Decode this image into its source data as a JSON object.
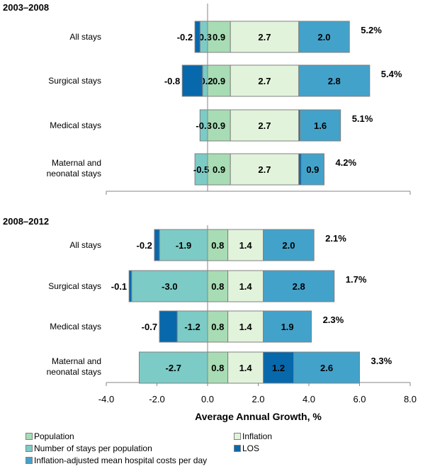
{
  "chart_data": [
    {
      "type": "bar",
      "orientation": "horizontal",
      "stacked": true,
      "title": "2003–2008",
      "categories": [
        "All stays",
        "Surgical stays",
        "Medical stays",
        "Maternal and neonatal stays"
      ],
      "series": [
        {
          "name": "Number of stays per population",
          "color": "#7ccbc6",
          "values": [
            -0.3,
            -0.2,
            -0.3,
            -0.5
          ]
        },
        {
          "name": "LOS",
          "color": "#0868ac",
          "values": [
            -0.2,
            -0.8,
            0.05,
            0.1
          ],
          "unlabeled_indices": [
            2,
            3
          ]
        },
        {
          "name": "Population",
          "color": "#a8dcb4",
          "values": [
            0.9,
            0.9,
            0.9,
            0.9
          ]
        },
        {
          "name": "Inflation",
          "color": "#e2f3dc",
          "values": [
            2.7,
            2.7,
            2.7,
            2.7
          ]
        },
        {
          "name": "Inflation-adjusted mean hospital costs per day",
          "color": "#43a2ca",
          "values": [
            2.0,
            2.8,
            1.6,
            0.9
          ]
        }
      ],
      "positive_order": [
        "Population",
        "Inflation",
        "LOS",
        "Inflation-adjusted mean hospital costs per day"
      ],
      "negative_order": [
        "Number of stays per population",
        "LOS"
      ],
      "totals": [
        "5.2%",
        "5.4%",
        "5.1%",
        "4.2%"
      ],
      "xlim": [
        -4.0,
        8.0
      ]
    },
    {
      "type": "bar",
      "orientation": "horizontal",
      "stacked": true,
      "title": "2008–2012",
      "categories": [
        "All stays",
        "Surgical stays",
        "Medical stays",
        "Maternal and neonatal stays"
      ],
      "series": [
        {
          "name": "Number of stays per population",
          "color": "#7ccbc6",
          "values": [
            -1.9,
            -3.0,
            -1.2,
            -2.7
          ]
        },
        {
          "name": "LOS",
          "color": "#0868ac",
          "values": [
            -0.2,
            -0.1,
            -0.7,
            1.2
          ]
        },
        {
          "name": "Population",
          "color": "#a8dcb4",
          "values": [
            0.8,
            0.8,
            0.8,
            0.8
          ]
        },
        {
          "name": "Inflation",
          "color": "#e2f3dc",
          "values": [
            1.4,
            1.4,
            1.4,
            1.4
          ]
        },
        {
          "name": "Inflation-adjusted mean hospital costs per day",
          "color": "#43a2ca",
          "values": [
            2.0,
            2.8,
            1.9,
            2.6
          ]
        }
      ],
      "positive_order": [
        "Population",
        "Inflation",
        "LOS",
        "Inflation-adjusted mean hospital costs per day"
      ],
      "negative_order": [
        "Number of stays per population",
        "LOS"
      ],
      "totals": [
        "2.1%",
        "1.7%",
        "2.3%",
        "3.3%"
      ],
      "xlim": [
        -4.0,
        8.0
      ],
      "xticks": [
        "-4.0",
        "-2.0",
        "0.0",
        "2.0",
        "4.0",
        "6.0",
        "8.0"
      ],
      "xlabel": "Average Annual Growth, %"
    }
  ],
  "legend": [
    {
      "label": "Population",
      "color": "#a8dcb4"
    },
    {
      "label": "Inflation",
      "color": "#e2f3dc"
    },
    {
      "label": "Number of stays per population",
      "color": "#7ccbc6"
    },
    {
      "label": "LOS",
      "color": "#0868ac"
    },
    {
      "label": "Inflation-adjusted mean hospital costs per day",
      "color": "#43a2ca"
    }
  ]
}
